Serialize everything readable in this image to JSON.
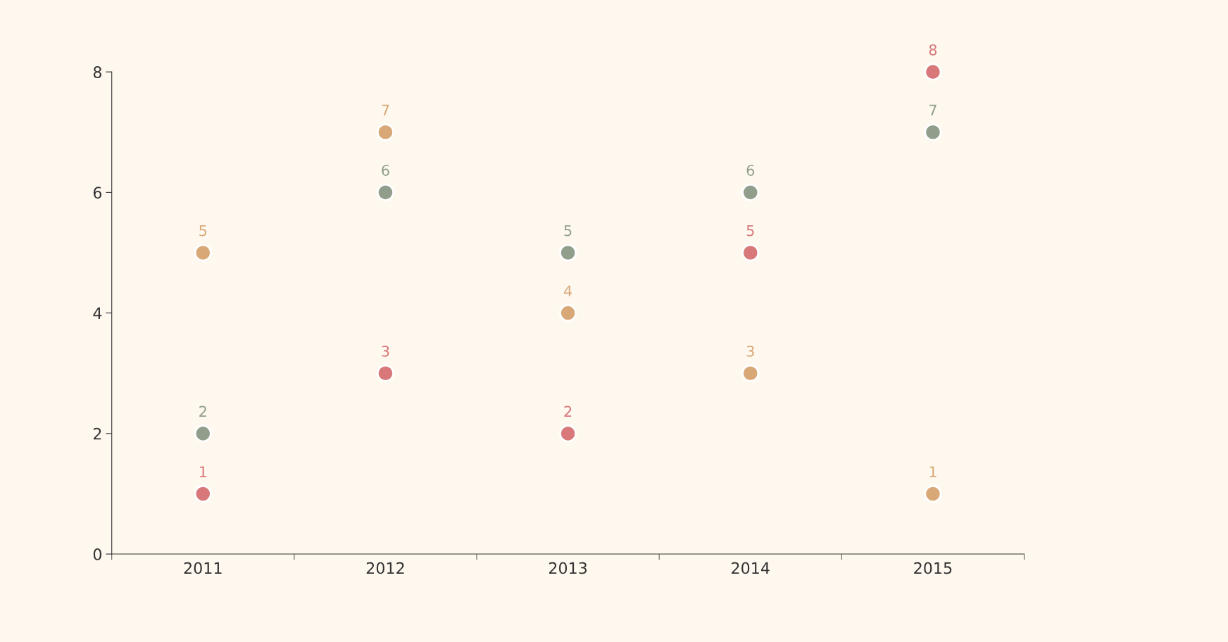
{
  "chart_data": {
    "type": "scatter",
    "categories": [
      "2011",
      "2012",
      "2013",
      "2014",
      "2015"
    ],
    "series": [
      {
        "color": "#d9787a",
        "values": [
          1,
          3,
          2,
          5,
          8
        ]
      },
      {
        "color": "#d9a877",
        "values": [
          5,
          7,
          4,
          3,
          1
        ]
      },
      {
        "color": "#919e8b",
        "values": [
          2,
          6,
          5,
          6,
          7
        ]
      }
    ],
    "ylim": [
      0,
      8
    ],
    "yticks": [
      0,
      2,
      4,
      6,
      8
    ],
    "data_labels": true,
    "marker": "circle",
    "grid": false,
    "legend": false
  }
}
